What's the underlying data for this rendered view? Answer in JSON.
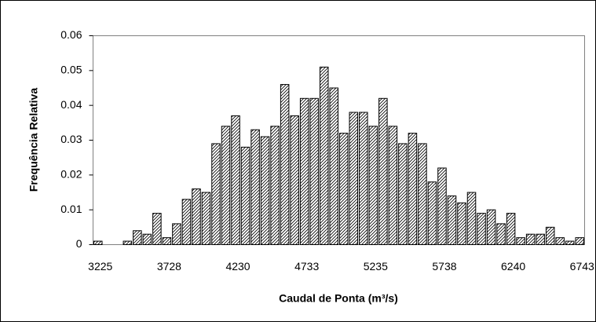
{
  "chart_data": {
    "type": "bar",
    "x_label": "Caudal de Ponta (m³/s)",
    "y_label": "Frequência Relativa",
    "categories": [
      "3225",
      null,
      null,
      null,
      null,
      null,
      null,
      "3728",
      null,
      null,
      null,
      null,
      null,
      null,
      "4230",
      null,
      null,
      null,
      null,
      null,
      null,
      "4733",
      null,
      null,
      null,
      null,
      null,
      null,
      "5235",
      null,
      null,
      null,
      null,
      null,
      null,
      "5738",
      null,
      null,
      null,
      null,
      null,
      null,
      "6240",
      null,
      null,
      null,
      null,
      null,
      null,
      "6743"
    ],
    "values": [
      0.001,
      0,
      0,
      0.001,
      0.004,
      0.003,
      0.009,
      0.002,
      0.006,
      0.013,
      0.016,
      0.015,
      0.029,
      0.034,
      0.037,
      0.028,
      0.033,
      0.031,
      0.034,
      0.046,
      0.037,
      0.042,
      0.042,
      0.051,
      0.045,
      0.032,
      0.038,
      0.038,
      0.034,
      0.042,
      0.034,
      0.029,
      0.032,
      0.029,
      0.018,
      0.022,
      0.014,
      0.012,
      0.015,
      0.009,
      0.01,
      0.006,
      0.009,
      0.002,
      0.003,
      0.003,
      0.005,
      0.002,
      0.001,
      0.002
    ],
    "color": "#000000",
    "ylim": [
      0,
      0.06
    ],
    "yticks": [
      0,
      0.01,
      0.02,
      0.03,
      0.04,
      0.05,
      0.06
    ],
    "grid": false
  }
}
